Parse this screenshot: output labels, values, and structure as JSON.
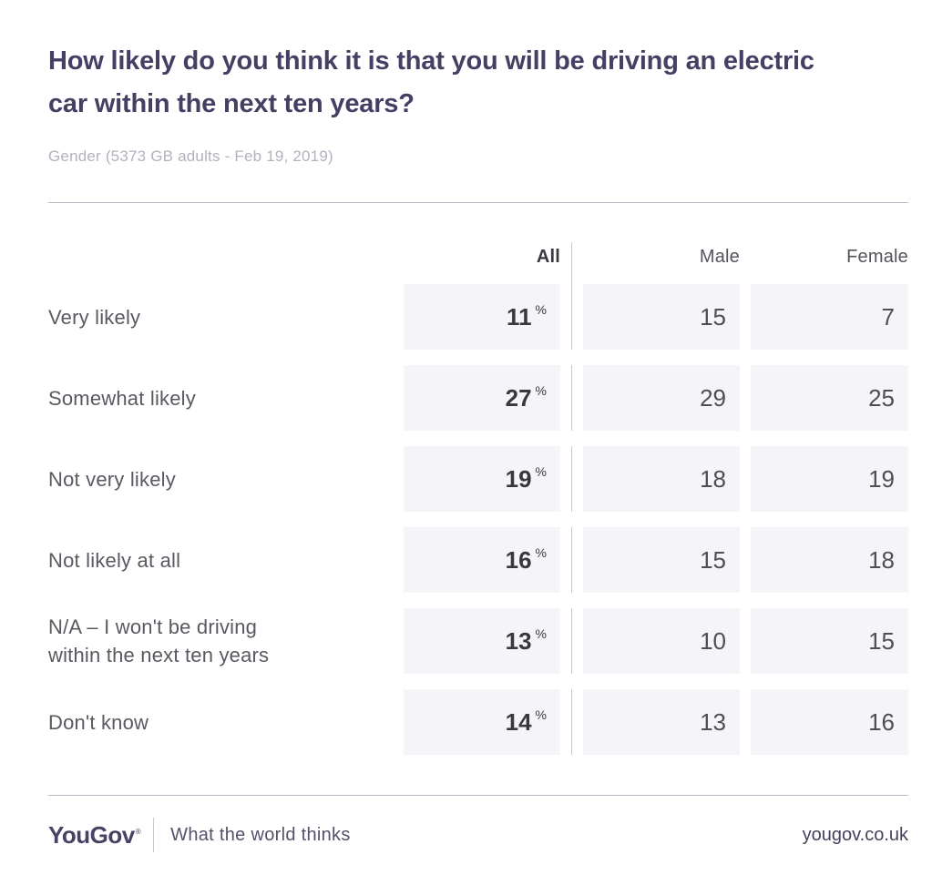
{
  "chart_data": {
    "type": "table",
    "title": "How likely do you think it is that you will be driving an electric car within the next ten years?",
    "subtitle": "Gender (5373 GB adults - Feb 19, 2019)",
    "columns": [
      "All",
      "Male",
      "Female"
    ],
    "unit_all": "%",
    "rows": [
      {
        "label": "Very likely",
        "all": "11",
        "male": "15",
        "female": "7"
      },
      {
        "label": "Somewhat likely",
        "all": "27",
        "male": "29",
        "female": "25"
      },
      {
        "label": "Not very likely",
        "all": "19",
        "male": "18",
        "female": "19"
      },
      {
        "label": "Not likely at all",
        "all": "16",
        "male": "15",
        "female": "18"
      },
      {
        "label": "N/A – I won't be driving\nwithin the next ten years",
        "all": "13",
        "male": "10",
        "female": "15"
      },
      {
        "label": "Don't know",
        "all": "14",
        "male": "13",
        "female": "16"
      }
    ],
    "layout": {
      "all_column_separated": true,
      "grid": false,
      "legend": "none"
    }
  },
  "footer": {
    "logo": "YouGov",
    "registered_mark": "®",
    "tagline": "What the world thinks",
    "website": "yougov.co.uk"
  },
  "colors": {
    "title_purple": "#453f63",
    "brand_purple": "#484264",
    "cell_background": "#f5f5f9",
    "divider": "#c9c7d6",
    "value_dark": "#3a383f",
    "label_gray": "#5a5860",
    "subtitle_gray": "#b3b1bf"
  }
}
